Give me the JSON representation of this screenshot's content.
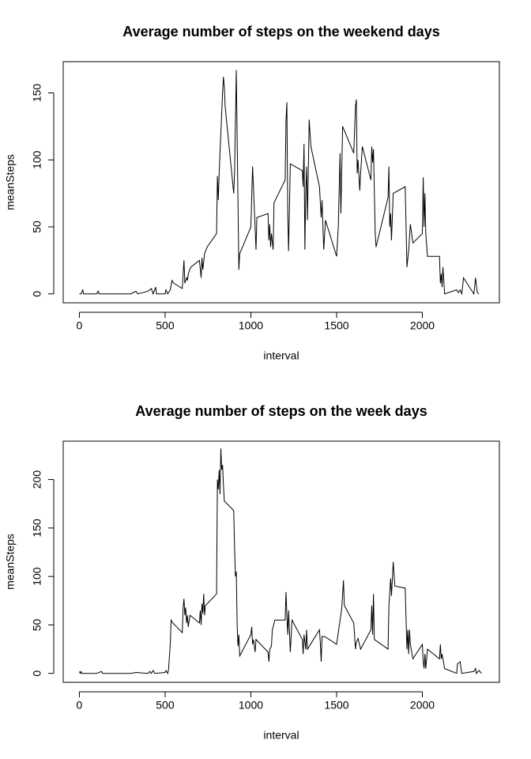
{
  "chart_data": [
    {
      "type": "line",
      "title": "Average number of steps on the weekend days",
      "xlabel": "interval",
      "ylabel": "meanSteps",
      "color": "#000000",
      "xlim": [
        -94.2,
        2449.2
      ],
      "xticks": [
        0,
        500,
        1000,
        1500,
        2000
      ],
      "ylim": [
        -6.66,
        173.3
      ],
      "yticks": [
        0,
        50,
        100,
        150
      ],
      "x": [
        0,
        10,
        20,
        25,
        100,
        110,
        115,
        200,
        300,
        330,
        340,
        400,
        420,
        430,
        445,
        450,
        500,
        505,
        515,
        530,
        540,
        550,
        600,
        610,
        615,
        625,
        630,
        635,
        650,
        700,
        710,
        715,
        720,
        730,
        745,
        800,
        805,
        810,
        815,
        825,
        835,
        840,
        845,
        850,
        900,
        905,
        915,
        930,
        935,
        1000,
        1010,
        1015,
        1030,
        1035,
        1100,
        1105,
        1110,
        1115,
        1120,
        1130,
        1135,
        1200,
        1205,
        1210,
        1215,
        1220,
        1230,
        1300,
        1305,
        1310,
        1315,
        1320,
        1325,
        1330,
        1340,
        1350,
        1400,
        1410,
        1415,
        1425,
        1435,
        1500,
        1510,
        1520,
        1525,
        1535,
        1600,
        1610,
        1615,
        1620,
        1625,
        1635,
        1640,
        1650,
        1700,
        1705,
        1710,
        1715,
        1725,
        1730,
        1800,
        1805,
        1810,
        1815,
        1820,
        1830,
        1900,
        1910,
        1920,
        1930,
        1945,
        2000,
        2005,
        2010,
        2015,
        2020,
        2030,
        2100,
        2105,
        2110,
        2115,
        2120,
        2125,
        2130,
        2200,
        2210,
        2220,
        2230,
        2240,
        2300,
        2305,
        2310,
        2320,
        2330
      ],
      "values": [
        0,
        0,
        3,
        0,
        0,
        2,
        0,
        0,
        0,
        2,
        0,
        2,
        4,
        0,
        5,
        0,
        0,
        3,
        0,
        3,
        10,
        8,
        4,
        25,
        8,
        12,
        10,
        15,
        20,
        25,
        12,
        27,
        18,
        30,
        35,
        45,
        88,
        70,
        90,
        120,
        150,
        162,
        155,
        140,
        75,
        90,
        167,
        18,
        30,
        50,
        95,
        80,
        33,
        57,
        60,
        40,
        52,
        35,
        45,
        33,
        68,
        85,
        130,
        143,
        60,
        32,
        97,
        92,
        80,
        112,
        33,
        75,
        95,
        55,
        130,
        110,
        80,
        57,
        70,
        33,
        55,
        28,
        50,
        105,
        60,
        125,
        105,
        140,
        145,
        90,
        100,
        77,
        90,
        110,
        85,
        110,
        98,
        108,
        45,
        35,
        72,
        95,
        50,
        60,
        40,
        75,
        80,
        20,
        32,
        52,
        38,
        45,
        87,
        50,
        75,
        45,
        28,
        28,
        8,
        15,
        5,
        20,
        10,
        0,
        3,
        1,
        3,
        0,
        12,
        0,
        5,
        12,
        1,
        0
      ]
    },
    {
      "type": "line",
      "title": "Average number of steps on the week days",
      "xlabel": "interval",
      "ylabel": "meanSteps",
      "color": "#000000",
      "xlim": [
        -94.2,
        2449.2
      ],
      "xticks": [
        0,
        500,
        1000,
        1500,
        2000
      ],
      "ylim": [
        -9.2,
        239.6
      ],
      "yticks": [
        0,
        50,
        100,
        150,
        200
      ],
      "x": [
        0,
        5,
        10,
        15,
        100,
        130,
        135,
        200,
        300,
        330,
        400,
        410,
        420,
        430,
        440,
        500,
        505,
        515,
        520,
        530,
        535,
        545,
        600,
        605,
        610,
        615,
        620,
        625,
        630,
        635,
        645,
        700,
        705,
        710,
        715,
        720,
        725,
        730,
        735,
        800,
        805,
        810,
        815,
        820,
        825,
        830,
        835,
        840,
        845,
        900,
        905,
        910,
        915,
        920,
        925,
        930,
        935,
        1000,
        1005,
        1010,
        1015,
        1025,
        1030,
        1100,
        1105,
        1110,
        1120,
        1125,
        1130,
        1140,
        1200,
        1205,
        1210,
        1215,
        1220,
        1230,
        1240,
        1300,
        1305,
        1310,
        1320,
        1325,
        1330,
        1400,
        1405,
        1410,
        1415,
        1430,
        1500,
        1530,
        1540,
        1545,
        1600,
        1610,
        1615,
        1625,
        1640,
        1700,
        1705,
        1710,
        1715,
        1720,
        1800,
        1805,
        1815,
        1820,
        1830,
        1840,
        1900,
        1910,
        1915,
        1920,
        1925,
        1930,
        1945,
        2000,
        2005,
        2010,
        2015,
        2020,
        2030,
        2100,
        2105,
        2110,
        2115,
        2130,
        2200,
        2205,
        2220,
        2230,
        2300,
        2310,
        2315,
        2330,
        2345
      ],
      "values": [
        2,
        0,
        2,
        0,
        0,
        2,
        0,
        0,
        0,
        1,
        0,
        2,
        0,
        3,
        0,
        1,
        3,
        0,
        4,
        30,
        55,
        52,
        42,
        68,
        77,
        60,
        68,
        52,
        60,
        48,
        60,
        52,
        65,
        50,
        72,
        62,
        82,
        60,
        70,
        82,
        200,
        190,
        210,
        185,
        232,
        210,
        215,
        195,
        178,
        168,
        130,
        100,
        105,
        50,
        28,
        40,
        18,
        40,
        48,
        30,
        35,
        22,
        35,
        22,
        12,
        25,
        28,
        45,
        48,
        55,
        55,
        84,
        60,
        40,
        65,
        22,
        55,
        35,
        20,
        40,
        25,
        45,
        25,
        45,
        32,
        12,
        38,
        38,
        30,
        67,
        96,
        70,
        52,
        25,
        32,
        36,
        25,
        45,
        70,
        40,
        82,
        35,
        25,
        70,
        98,
        80,
        115,
        90,
        88,
        25,
        45,
        20,
        45,
        30,
        15,
        30,
        12,
        5,
        20,
        5,
        25,
        15,
        30,
        15,
        20,
        5,
        0,
        10,
        12,
        0,
        2,
        5,
        0,
        3,
        0
      ]
    }
  ]
}
